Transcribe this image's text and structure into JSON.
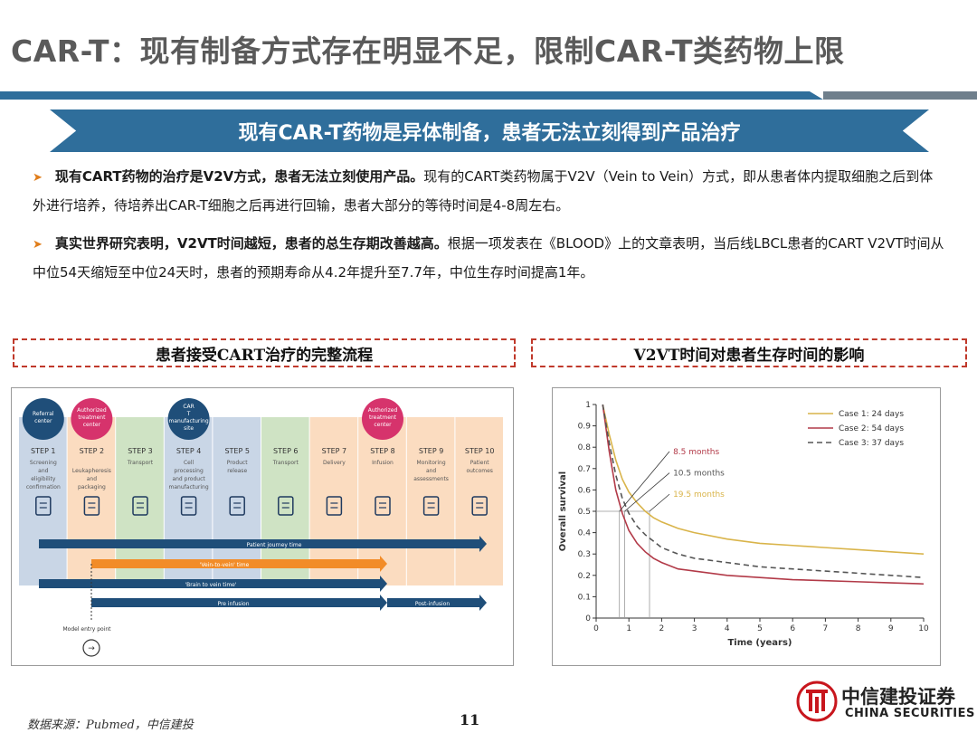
{
  "header": {
    "title": "CAR-T：现有制备方式存在明显不足，限制CAR-T类药物上限",
    "banner": "现有CAR-T药物是异体制备，患者无法立刻得到产品治疗"
  },
  "bullets": [
    {
      "bold": "现有CART药物的治疗是V2V方式，患者无法立刻使用产品。",
      "text": "现有的CART类药物属于V2V（Vein to Vein）方式，即从患者体内提取细胞之后到体外进行培养，待培养出CAR-T细胞之后再进行回输，患者大部分的等待时间是4-8周左右。"
    },
    {
      "bold": "真实世界研究表明，V2VT时间越短，患者的总生存期改善越高。",
      "text": "根据一项发表在《BLOOD》上的文章表明，当后线LBCL患者的CART V2VT时间从中位54天缩短至中位24天时，患者的预期寿命从4.2年提升至7.7年，中位生存时间提高1年。"
    }
  ],
  "sections": {
    "left_title": "患者接受CART治疗的完整流程",
    "right_title": "V2VT时间对患者生存时间的影响"
  },
  "flow": {
    "centers": [
      {
        "label": "Referral center",
        "color": "#1f4e79"
      },
      {
        "label": "Authorized treatment center",
        "color": "#d6336c"
      },
      {
        "label": "CAR T manufacturing site",
        "color": "#1f4e79"
      },
      {
        "label": "Authorized treatment center",
        "color": "#d6336c"
      }
    ],
    "steps": [
      {
        "num": "STEP 1",
        "desc": "Screening and eligibility confirmation",
        "bg": "#c9d6e6"
      },
      {
        "num": "STEP 2",
        "desc": "Leukapheresis and packaging",
        "bg": "#fbdcc0"
      },
      {
        "num": "STEP 3",
        "desc": "Transport",
        "bg": "#cfe3c4"
      },
      {
        "num": "STEP 4",
        "desc": "Cell processing and product manufacturing",
        "bg": "#c9d6e6"
      },
      {
        "num": "STEP 5",
        "desc": "Product release",
        "bg": "#c9d6e6"
      },
      {
        "num": "STEP 6",
        "desc": "Transport",
        "bg": "#cfe3c4"
      },
      {
        "num": "STEP 7",
        "desc": "Delivery",
        "bg": "#fbdcc0"
      },
      {
        "num": "STEP 8",
        "desc": "Infusion",
        "bg": "#fbdcc0"
      },
      {
        "num": "STEP 9",
        "desc": "Monitoring and assessments",
        "bg": "#fbdcc0"
      },
      {
        "num": "STEP 10",
        "desc": "Patient outcomes",
        "bg": "#fbdcc0"
      }
    ],
    "icons": [
      "checklist-icon",
      "blood-bag-icon",
      "truck-icon",
      "syringe-icon",
      "clipboard-icon",
      "truck-icon",
      "box-icon",
      "blood-bag-icon",
      "notepad-icon",
      "people-icon"
    ],
    "arrows": {
      "patient_journey": "Patient journey time",
      "vein_to_vein": "'Vein-to-vein' time",
      "brain_to_vein": "'Brain to vein time'",
      "pre_infusion": "Pre infusion",
      "post_infusion": "Post-infusion"
    },
    "model_entry": "Model entry point"
  },
  "chart_data": {
    "type": "line",
    "xlabel": "Time (years)",
    "ylabel": "Overall survival",
    "xlim": [
      0,
      10
    ],
    "ylim": [
      0,
      1
    ],
    "xticks": [
      0,
      1,
      2,
      3,
      4,
      5,
      6,
      7,
      8,
      9,
      10
    ],
    "yticks": [
      0,
      0.1,
      0.2,
      0.3,
      0.4,
      0.5,
      0.6,
      0.7,
      0.8,
      0.9,
      1
    ],
    "legend_position": "top-right",
    "series": [
      {
        "name": "Case 1: 24 days",
        "color": "#d9b44a",
        "dash": "",
        "x": [
          0.2,
          0.4,
          0.6,
          0.8,
          1,
          1.25,
          1.5,
          1.75,
          2,
          2.5,
          3,
          4,
          5,
          6,
          7,
          8,
          9,
          10
        ],
        "y": [
          1.0,
          0.86,
          0.74,
          0.65,
          0.59,
          0.54,
          0.5,
          0.47,
          0.45,
          0.42,
          0.4,
          0.37,
          0.35,
          0.34,
          0.33,
          0.32,
          0.31,
          0.3
        ]
      },
      {
        "name": "Case 2: 54 days",
        "color": "#b23a48",
        "dash": "",
        "x": [
          0.2,
          0.4,
          0.6,
          0.8,
          1,
          1.25,
          1.5,
          1.75,
          2,
          2.5,
          3,
          4,
          5,
          6,
          7,
          8,
          9,
          10
        ],
        "y": [
          1.0,
          0.78,
          0.6,
          0.49,
          0.41,
          0.35,
          0.31,
          0.28,
          0.26,
          0.23,
          0.22,
          0.2,
          0.19,
          0.18,
          0.175,
          0.17,
          0.165,
          0.16
        ]
      },
      {
        "name": "Case 3: 37 days",
        "color": "#555555",
        "dash": "6,4",
        "x": [
          0.2,
          0.4,
          0.6,
          0.8,
          1,
          1.25,
          1.5,
          1.75,
          2,
          2.5,
          3,
          4,
          5,
          6,
          7,
          8,
          9,
          10
        ],
        "y": [
          1.0,
          0.82,
          0.67,
          0.56,
          0.49,
          0.43,
          0.39,
          0.36,
          0.33,
          0.3,
          0.28,
          0.26,
          0.24,
          0.23,
          0.22,
          0.21,
          0.2,
          0.19
        ]
      }
    ],
    "annotations": [
      {
        "text": "8.5 months",
        "color": "#b23a48",
        "x": 0.71
      },
      {
        "text": "10.5 months",
        "color": "#555555",
        "x": 0.87
      },
      {
        "text": "19.5 months",
        "color": "#d9b44a",
        "x": 1.63
      }
    ]
  },
  "footer": {
    "source": "数据来源：Pubmed，中信建投",
    "page": "11",
    "logo_cn": "中信建投证券",
    "logo_en": "CHINA SECURITIES"
  }
}
